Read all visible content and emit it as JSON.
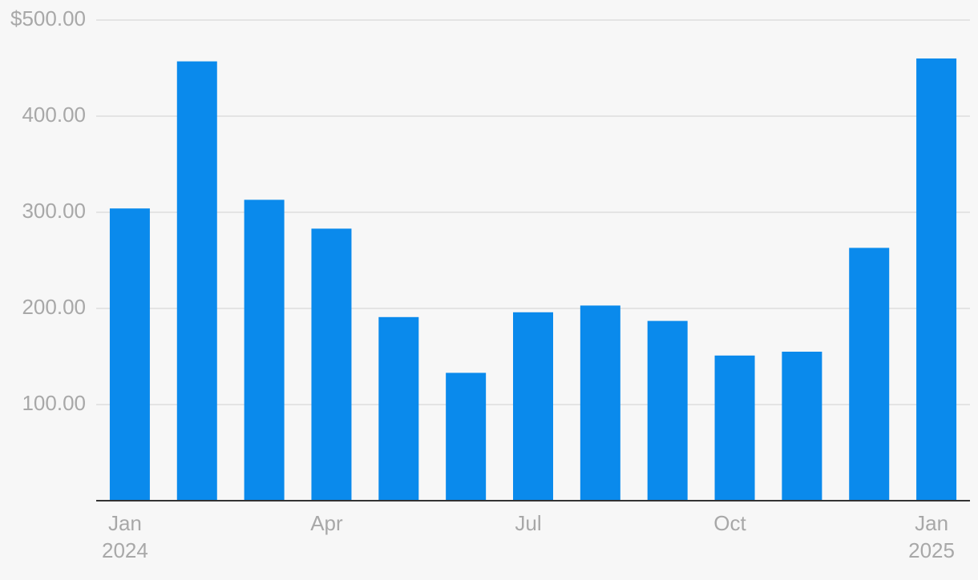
{
  "chart_data": {
    "type": "bar",
    "categories": [
      "Jan 2024",
      null,
      null,
      "Apr",
      null,
      null,
      "Jul",
      null,
      null,
      "Oct",
      null,
      null,
      "Jan 2025"
    ],
    "values": [
      304,
      457,
      313,
      283,
      191,
      133,
      196,
      203,
      187,
      151,
      155,
      263,
      460
    ],
    "color": "#0a8aec",
    "ylim": [
      0,
      500
    ],
    "yticks": [
      {
        "value": 100,
        "label": "100.00"
      },
      {
        "value": 200,
        "label": "200.00"
      },
      {
        "value": 300,
        "label": "300.00"
      },
      {
        "value": 400,
        "label": "400.00"
      },
      {
        "value": 500,
        "label": "$500.00"
      }
    ],
    "grid": true
  }
}
